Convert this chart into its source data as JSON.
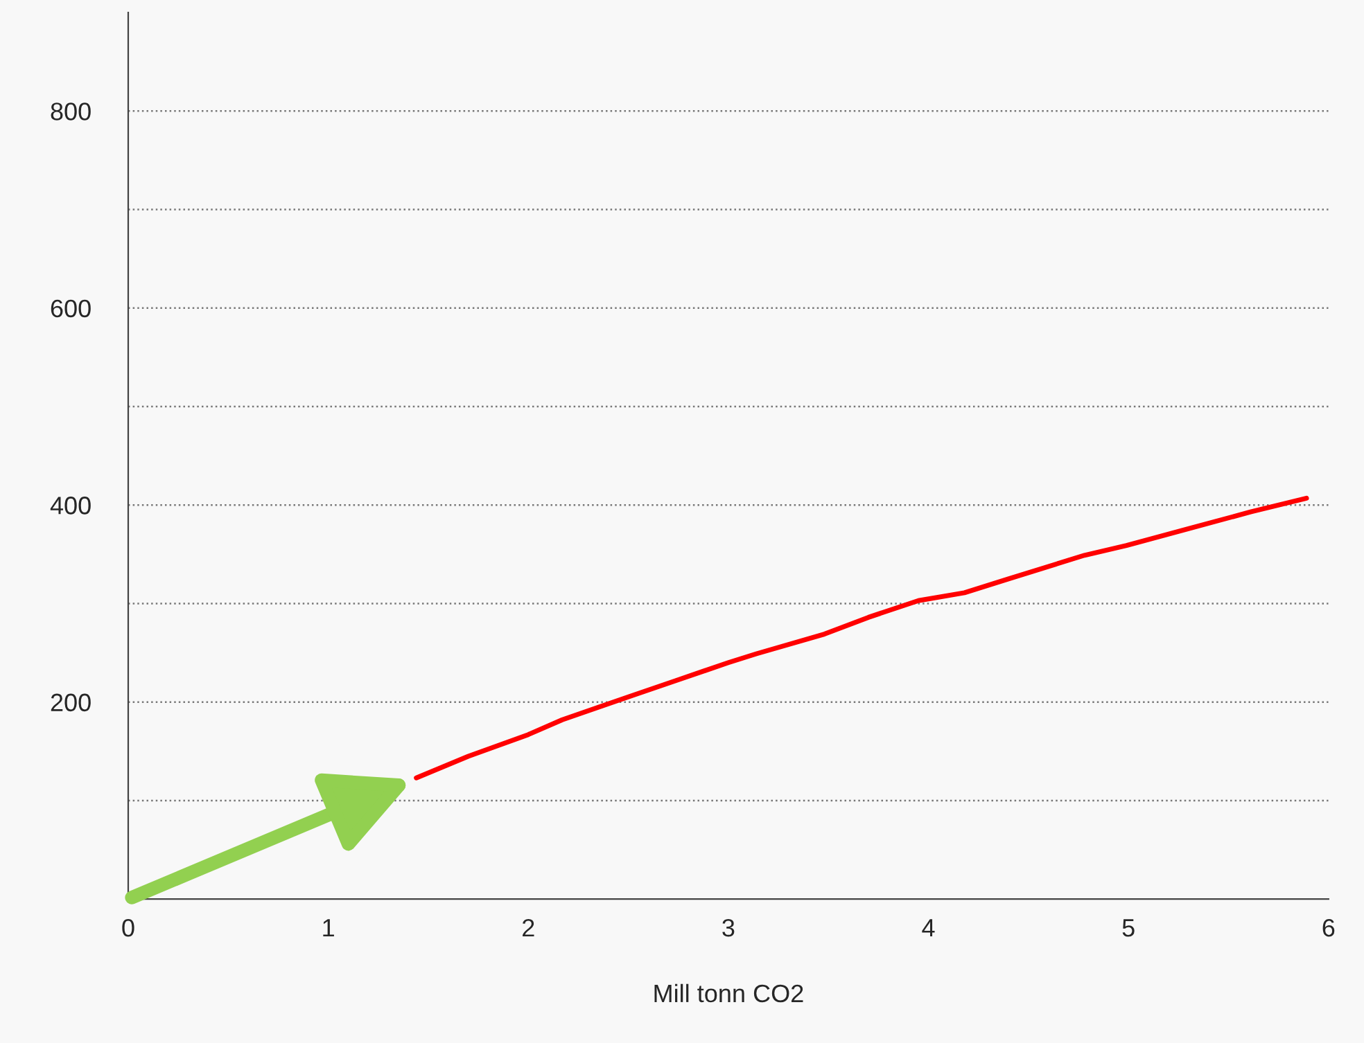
{
  "chart_data": {
    "type": "line",
    "xlabel": "Mill tonn CO2",
    "series": [
      {
        "color": "#ff0000",
        "x": [
          1.44,
          1.7,
          2.0,
          2.17,
          2.51,
          2.74,
          3.0,
          3.14,
          3.48,
          3.7,
          3.95,
          4.18,
          4.4,
          4.78,
          4.99,
          5.3,
          5.61,
          5.89
        ],
        "values": [
          123,
          145,
          167,
          182,
          206,
          222,
          240,
          249,
          269,
          286,
          303,
          311,
          325,
          349,
          359,
          376,
          393,
          407
        ]
      }
    ],
    "xlim": [
      0,
      6
    ],
    "xticks": [
      0,
      1,
      2,
      3,
      4,
      5,
      6
    ],
    "ylim": [
      0,
      900
    ],
    "yticks": [
      {
        "value": 100,
        "label": null
      },
      200,
      {
        "value": 300,
        "label": null
      },
      400,
      {
        "value": 500,
        "label": null
      },
      600,
      {
        "value": 700,
        "label": null
      },
      800
    ],
    "grid": "y",
    "legend": false,
    "marker": "none",
    "line_style": "solid"
  }
}
